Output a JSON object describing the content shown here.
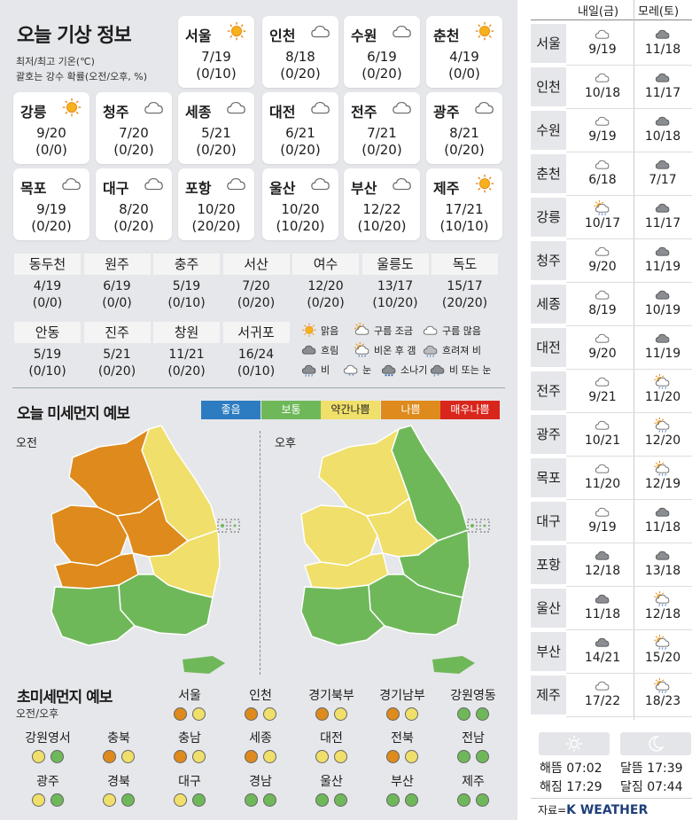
{
  "title": "오늘 기상 정보",
  "subtitle1": "최저/최고 기온(℃)",
  "subtitle2": "괄호는 강수 확률(오전/오후, %)",
  "cities": [
    {
      "name": "서울",
      "icon": "sun-icon",
      "temp": "7/19",
      "prob": "(0/10)"
    },
    {
      "name": "인천",
      "icon": "cloud-icon",
      "temp": "8/18",
      "prob": "(0/20)"
    },
    {
      "name": "수원",
      "icon": "cloud-icon",
      "temp": "6/19",
      "prob": "(0/20)"
    },
    {
      "name": "춘천",
      "icon": "sun-icon",
      "temp": "4/19",
      "prob": "(0/0)"
    },
    {
      "name": "강릉",
      "icon": "sun-icon",
      "temp": "9/20",
      "prob": "(0/0)"
    },
    {
      "name": "청주",
      "icon": "cloud-icon",
      "temp": "7/20",
      "prob": "(0/20)"
    },
    {
      "name": "세종",
      "icon": "cloud-icon",
      "temp": "5/21",
      "prob": "(0/20)"
    },
    {
      "name": "대전",
      "icon": "cloud-icon",
      "temp": "6/21",
      "prob": "(0/20)"
    },
    {
      "name": "전주",
      "icon": "cloud-icon",
      "temp": "7/21",
      "prob": "(0/20)"
    },
    {
      "name": "광주",
      "icon": "cloud-icon",
      "temp": "8/21",
      "prob": "(0/20)"
    },
    {
      "name": "목포",
      "icon": "cloud-icon",
      "temp": "9/19",
      "prob": "(0/20)"
    },
    {
      "name": "대구",
      "icon": "cloud-icon",
      "temp": "8/20",
      "prob": "(0/20)"
    },
    {
      "name": "포항",
      "icon": "cloud-icon",
      "temp": "10/20",
      "prob": "(20/20)"
    },
    {
      "name": "울산",
      "icon": "cloud-icon",
      "temp": "10/20",
      "prob": "(10/20)"
    },
    {
      "name": "부산",
      "icon": "cloud-icon",
      "temp": "12/22",
      "prob": "(10/20)"
    },
    {
      "name": "제주",
      "icon": "sun-icon",
      "temp": "17/21",
      "prob": "(10/10)"
    }
  ],
  "small_cities": [
    {
      "name": "동두천",
      "temp": "4/19",
      "prob": "(0/0)"
    },
    {
      "name": "원주",
      "temp": "6/19",
      "prob": "(0/0)"
    },
    {
      "name": "충주",
      "temp": "5/19",
      "prob": "(0/10)"
    },
    {
      "name": "서산",
      "temp": "7/20",
      "prob": "(0/20)"
    },
    {
      "name": "여수",
      "temp": "12/20",
      "prob": "(0/20)"
    },
    {
      "name": "울릉도",
      "temp": "13/17",
      "prob": "(10/20)"
    },
    {
      "name": "독도",
      "temp": "15/17",
      "prob": "(20/20)"
    },
    {
      "name": "안동",
      "temp": "5/19",
      "prob": "(0/10)"
    },
    {
      "name": "진주",
      "temp": "5/21",
      "prob": "(0/20)"
    },
    {
      "name": "창원",
      "temp": "11/21",
      "prob": "(0/20)"
    },
    {
      "name": "서귀포",
      "temp": "16/24",
      "prob": "(0/10)"
    }
  ],
  "weather_legend": [
    {
      "icon": "sun-icon",
      "label": "맑음"
    },
    {
      "icon": "sun-cloud-icon",
      "label": "구름 조금"
    },
    {
      "icon": "cloud-icon",
      "label": "구름 많음"
    },
    {
      "icon": "dark-cloud-icon",
      "label": "흐림"
    },
    {
      "icon": "rain-then-clear-icon",
      "label": "비온 후 갬"
    },
    {
      "icon": "cloudy-rain-icon",
      "label": "흐려져 비"
    },
    {
      "icon": "rain-icon",
      "label": "비"
    },
    {
      "icon": "snow-icon",
      "label": "눈"
    },
    {
      "icon": "shower-icon",
      "label": "소나기"
    },
    {
      "icon": "rain-or-snow-icon",
      "label": "비 또는 눈"
    }
  ],
  "dust_title": "오늘 미세먼지 예보",
  "dust_scale": [
    {
      "label": "좋음",
      "color": "#2d7cc1"
    },
    {
      "label": "보통",
      "color": "#6fb85a"
    },
    {
      "label": "약간나쁨",
      "color": "#f0df6a"
    },
    {
      "label": "나쁨",
      "color": "#de8a1c"
    },
    {
      "label": "매우나쁨",
      "color": "#d9261c"
    }
  ],
  "map_am_label": "오전",
  "map_pm_label": "오후",
  "ultra_title": "초미세먼지 예보",
  "ultra_sub": "오전/오후",
  "ultra": [
    {
      "name": "서울",
      "am": "orange",
      "pm": "yellow"
    },
    {
      "name": "인천",
      "am": "orange",
      "pm": "yellow"
    },
    {
      "name": "경기북부",
      "am": "orange",
      "pm": "yellow"
    },
    {
      "name": "경기남부",
      "am": "orange",
      "pm": "yellow"
    },
    {
      "name": "강원영동",
      "am": "green",
      "pm": "green"
    },
    {
      "name": "강원영서",
      "am": "yellow",
      "pm": "green"
    },
    {
      "name": "충북",
      "am": "orange",
      "pm": "yellow"
    },
    {
      "name": "충남",
      "am": "orange",
      "pm": "yellow"
    },
    {
      "name": "세종",
      "am": "orange",
      "pm": "yellow"
    },
    {
      "name": "대전",
      "am": "yellow",
      "pm": "yellow"
    },
    {
      "name": "전북",
      "am": "orange",
      "pm": "yellow"
    },
    {
      "name": "전남",
      "am": "green",
      "pm": "green"
    },
    {
      "name": "광주",
      "am": "yellow",
      "pm": "green"
    },
    {
      "name": "경북",
      "am": "yellow",
      "pm": "green"
    },
    {
      "name": "대구",
      "am": "yellow",
      "pm": "green"
    },
    {
      "name": "경남",
      "am": "green",
      "pm": "green"
    },
    {
      "name": "울산",
      "am": "green",
      "pm": "green"
    },
    {
      "name": "부산",
      "am": "green",
      "pm": "green"
    },
    {
      "name": "제주",
      "am": "green",
      "pm": "green"
    }
  ],
  "dot_colors": {
    "orange": "#de8a1c",
    "yellow": "#f0df6a",
    "green": "#6fb85a"
  },
  "forecast_head": {
    "tomorrow": "내일(금)",
    "after": "모레(토)"
  },
  "forecast": [
    {
      "city": "서울",
      "t_icon": "cloud-icon",
      "t": "9/19",
      "a_icon": "dark-cloud-icon",
      "a": "11/18"
    },
    {
      "city": "인천",
      "t_icon": "cloud-icon",
      "t": "10/18",
      "a_icon": "dark-cloud-icon",
      "a": "11/17"
    },
    {
      "city": "수원",
      "t_icon": "cloud-icon",
      "t": "9/19",
      "a_icon": "dark-cloud-icon",
      "a": "10/18"
    },
    {
      "city": "춘천",
      "t_icon": "cloud-icon",
      "t": "6/18",
      "a_icon": "dark-cloud-icon",
      "a": "7/17"
    },
    {
      "city": "강릉",
      "t_icon": "sun-rain-icon",
      "t": "10/17",
      "a_icon": "dark-cloud-icon",
      "a": "11/17"
    },
    {
      "city": "청주",
      "t_icon": "cloud-icon",
      "t": "9/20",
      "a_icon": "dark-cloud-icon",
      "a": "11/19"
    },
    {
      "city": "세종",
      "t_icon": "cloud-icon",
      "t": "8/19",
      "a_icon": "dark-cloud-icon",
      "a": "10/19"
    },
    {
      "city": "대전",
      "t_icon": "cloud-icon",
      "t": "9/20",
      "a_icon": "dark-cloud-icon",
      "a": "11/19"
    },
    {
      "city": "전주",
      "t_icon": "cloud-icon",
      "t": "9/21",
      "a_icon": "sun-rain-icon",
      "a": "11/20"
    },
    {
      "city": "광주",
      "t_icon": "cloud-icon",
      "t": "10/21",
      "a_icon": "sun-rain-icon",
      "a": "12/20"
    },
    {
      "city": "목포",
      "t_icon": "cloud-icon",
      "t": "11/20",
      "a_icon": "sun-rain-icon",
      "a": "12/19"
    },
    {
      "city": "대구",
      "t_icon": "cloud-icon",
      "t": "9/19",
      "a_icon": "dark-cloud-icon",
      "a": "11/18"
    },
    {
      "city": "포항",
      "t_icon": "dark-cloud-icon",
      "t": "12/18",
      "a_icon": "dark-cloud-icon",
      "a": "13/18"
    },
    {
      "city": "울산",
      "t_icon": "dark-cloud-icon",
      "t": "11/18",
      "a_icon": "sun-rain-icon",
      "a": "12/18"
    },
    {
      "city": "부산",
      "t_icon": "dark-cloud-icon",
      "t": "14/21",
      "a_icon": "sun-rain-icon",
      "a": "15/20"
    },
    {
      "city": "제주",
      "t_icon": "cloud-icon",
      "t": "17/22",
      "a_icon": "sun-rain-icon",
      "a": "18/23"
    }
  ],
  "sun": {
    "rise": "해뜸 07:02",
    "set": "해짐 17:29"
  },
  "moon": {
    "rise": "달뜸 17:39",
    "set": "달짐 07:44"
  },
  "source_prefix": "자료=",
  "source_brand": "K WEATHER"
}
